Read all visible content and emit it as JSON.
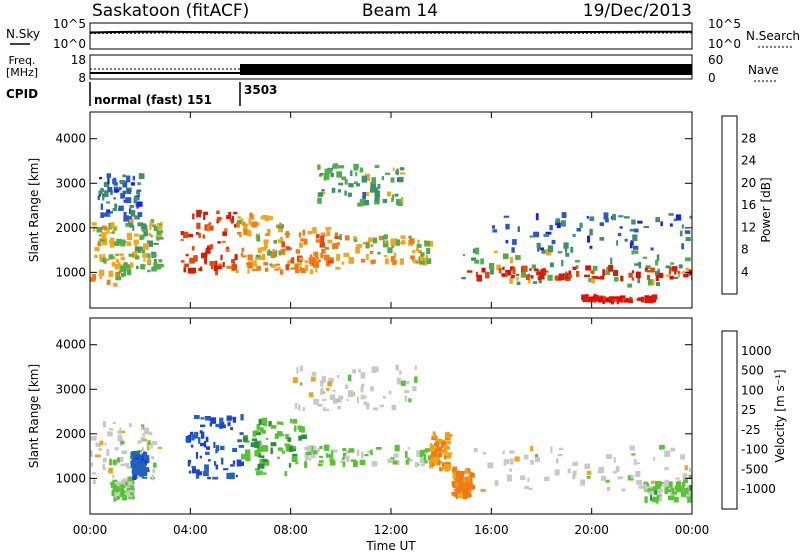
{
  "header": {
    "station": "Saskatoon (fitACF)",
    "beam": "Beam 14",
    "date": "19/Dec/2013"
  },
  "noise_panel": {
    "left_label": "N.Sky",
    "right_label": "N.Search",
    "left_ticks": [
      "10^5",
      "10^0"
    ],
    "right_ticks": [
      "10^5",
      "10^0"
    ]
  },
  "freq_panel": {
    "left_label_top": "Freq.",
    "left_label_bottom": "[MHz]",
    "left_ticks": [
      "18",
      "8"
    ],
    "right_label": "Nave",
    "right_ticks": [
      "60",
      "0"
    ]
  },
  "cpid_panel": {
    "label": "CPID",
    "modes": [
      {
        "name": "normal (fast) 151",
        "start_hour": 0
      },
      {
        "name": "3503",
        "start_hour": 6
      }
    ]
  },
  "x_axis": {
    "label": "Time UT",
    "tick_labels": [
      "00:00",
      "04:00",
      "08:00",
      "12:00",
      "16:00",
      "20:00",
      "00:00"
    ],
    "range_hours": [
      0,
      24
    ]
  },
  "power_panel": {
    "ylabel": "Slant Range [km]",
    "y_ticks": [
      "1000",
      "2000",
      "3000",
      "4000"
    ],
    "ylim": [
      200,
      4600
    ],
    "colorbar_label": "Power [dB]",
    "colorbar_ticks": [
      "4",
      "8",
      "12",
      "16",
      "20",
      "24",
      "28"
    ],
    "colorbar_colors": [
      "#1a1aff",
      "#2a58c8",
      "#3f8f6a",
      "#4fae4a",
      "#f3a51e",
      "#f07a15",
      "#e04a10",
      "#d61b0b",
      "#ee0000"
    ]
  },
  "velocity_panel": {
    "ylabel": "Slant Range [km]",
    "y_ticks": [
      "1000",
      "2000",
      "3000",
      "4000"
    ],
    "ylim": [
      200,
      4600
    ],
    "colorbar_label": "Velocity [m s⁻¹]",
    "colorbar_ticks": [
      "1000",
      "500",
      "100",
      "25",
      "-25",
      "-100",
      "-500",
      "-1000"
    ],
    "colorbar_colors": [
      "#1c3fd8",
      "#1f63bd",
      "#2f8a44",
      "#57c332",
      "#c8c8c8",
      "#f0a21a",
      "#ef7a14",
      "#f24a0d",
      "#ee0000"
    ]
  },
  "chart_data": [
    {
      "type": "line",
      "title": "N.Sky / N.Search",
      "x": [
        0,
        1,
        2,
        3,
        4,
        5,
        6,
        8,
        10,
        12,
        14,
        16,
        18,
        20,
        22,
        24
      ],
      "series": [
        {
          "name": "N.Sky",
          "values": [
            2000,
            2500,
            3000,
            2800,
            2600,
            2400,
            2200,
            2000,
            2100,
            2300,
            2400,
            2300,
            2200,
            2500,
            2800,
            3000
          ]
        },
        {
          "name": "N.Search",
          "values": [
            1200,
            1300,
            1400,
            1500,
            1500,
            1400,
            1300,
            1200,
            1300,
            1300,
            1400,
            1300,
            1300,
            1400,
            1500,
            1600
          ]
        }
      ]
    },
    {
      "type": "line",
      "title": "Freq. [MHz] / Nave",
      "x": [
        0,
        6,
        6,
        24
      ],
      "series": [
        {
          "name": "Freq.",
          "values": [
            10.5,
            10.5,
            11.5,
            11.5
          ]
        },
        {
          "name": "Nave",
          "values": [
            33,
            33,
            22,
            22
          ]
        }
      ]
    },
    {
      "type": "heatmap",
      "title": "Power [dB]",
      "xlabel": "Time UT",
      "ylabel": "Slant Range [km]",
      "xlim": [
        0,
        24
      ],
      "ylim": [
        200,
        4600
      ],
      "colorbar_range": [
        0,
        30
      ],
      "regions": [
        {
          "t0": 0.0,
          "t1": 1.5,
          "r0": 700,
          "r1": 2100,
          "value": 14
        },
        {
          "t0": 1.5,
          "t1": 2.8,
          "r0": 1000,
          "r1": 2200,
          "value": 12
        },
        {
          "t0": 0.3,
          "t1": 2.0,
          "r0": 2200,
          "r1": 3200,
          "value": 6
        },
        {
          "t0": 3.6,
          "t1": 5.8,
          "r0": 1000,
          "r1": 2400,
          "value": 22
        },
        {
          "t0": 5.8,
          "t1": 7.6,
          "r0": 1000,
          "r1": 2300,
          "value": 16
        },
        {
          "t0": 7.6,
          "t1": 9.8,
          "r0": 1000,
          "r1": 2000,
          "value": 18
        },
        {
          "t0": 9.8,
          "t1": 13.5,
          "r0": 1200,
          "r1": 1800,
          "value": 14
        },
        {
          "t0": 9.0,
          "t1": 12.5,
          "r0": 2500,
          "r1": 3400,
          "value": 10
        },
        {
          "t0": 14.3,
          "t1": 24.0,
          "r0": 700,
          "r1": 1500,
          "value": 12
        },
        {
          "t0": 15.0,
          "t1": 24.0,
          "r0": 850,
          "r1": 1100,
          "value": 24
        },
        {
          "t0": 19.5,
          "t1": 22.5,
          "r0": 350,
          "r1": 450,
          "value": 26
        },
        {
          "t0": 16.0,
          "t1": 24.0,
          "r0": 1500,
          "r1": 2300,
          "value": 6
        }
      ]
    },
    {
      "type": "heatmap",
      "title": "Velocity [m s⁻¹]",
      "xlabel": "Time UT",
      "ylabel": "Slant Range [km]",
      "xlim": [
        0,
        24
      ],
      "ylim": [
        200,
        4600
      ],
      "colorbar_range": [
        -1000,
        1000
      ],
      "regions": [
        {
          "t0": 0.0,
          "t1": 2.8,
          "r0": 900,
          "r1": 2300,
          "value": 0
        },
        {
          "t0": 0.8,
          "t1": 1.6,
          "r0": 550,
          "r1": 950,
          "value": 200
        },
        {
          "t0": 1.6,
          "t1": 2.2,
          "r0": 1000,
          "r1": 1600,
          "value": 700
        },
        {
          "t0": 3.8,
          "t1": 6.0,
          "r0": 1000,
          "r1": 2400,
          "value": 800
        },
        {
          "t0": 6.0,
          "t1": 8.5,
          "r0": 1100,
          "r1": 2300,
          "value": 300
        },
        {
          "t0": 8.5,
          "t1": 13.5,
          "r0": 1300,
          "r1": 1700,
          "value": 150
        },
        {
          "t0": 8.0,
          "t1": 13.0,
          "r0": 2500,
          "r1": 3500,
          "value": 0
        },
        {
          "t0": 13.5,
          "t1": 14.3,
          "r0": 1200,
          "r1": 2000,
          "value": -300
        },
        {
          "t0": 14.4,
          "t1": 15.2,
          "r0": 600,
          "r1": 1200,
          "value": -400
        },
        {
          "t0": 15.2,
          "t1": 24.0,
          "r0": 700,
          "r1": 1700,
          "value": 0
        },
        {
          "t0": 22.0,
          "t1": 24.0,
          "r0": 500,
          "r1": 900,
          "value": 200
        }
      ]
    }
  ]
}
